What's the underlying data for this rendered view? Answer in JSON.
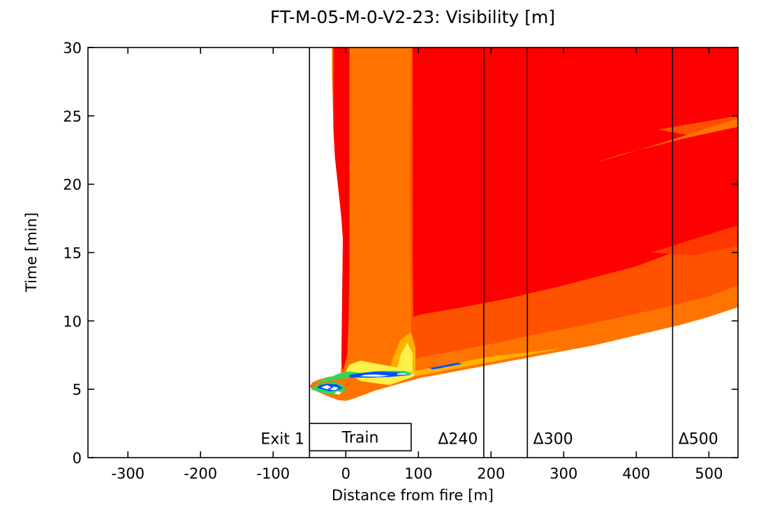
{
  "chart_data": {
    "type": "heatmap",
    "title": "FT-M-05-M-0-V2-23: Visibility [m]",
    "xlabel": "Distance from fire [m]",
    "ylabel": "Time [min]",
    "xlim": [
      -355,
      540
    ],
    "ylim": [
      0,
      30
    ],
    "xticks": [
      -300,
      -200,
      -100,
      0,
      100,
      200,
      300,
      400,
      500
    ],
    "yticks": [
      0,
      5,
      10,
      15,
      20,
      25,
      30
    ],
    "grid": false,
    "legend": "none",
    "colors": {
      "red": "#ff0000",
      "red_orange": "#ff3800",
      "orange_red": "#ff5200",
      "orange": "#ff7400",
      "light_orange": "#ff8c1a",
      "yellow_orange": "#ffb000",
      "yellow": "#fff04a",
      "green": "#2fd85a",
      "blue": "#0050ff",
      "white": "#ffffff"
    },
    "regions": [
      {
        "fill": "#ff7400",
        "points": [
          [
            -50,
            5.2
          ],
          [
            -46,
            5.5
          ],
          [
            -38,
            5.7
          ],
          [
            -25,
            5.9
          ],
          [
            -12,
            6.0
          ],
          [
            -7,
            6.1
          ],
          [
            -6,
            7.0
          ],
          [
            -5,
            12
          ],
          [
            -4,
            16
          ],
          [
            -6,
            17.5
          ],
          [
            -8,
            18.5
          ],
          [
            -12,
            20.5
          ],
          [
            -15,
            22
          ],
          [
            -17,
            24
          ],
          [
            -19,
            28
          ],
          [
            -19,
            30
          ],
          [
            540,
            30
          ],
          [
            540,
            11.0
          ],
          [
            500,
            10.3
          ],
          [
            460,
            9.7
          ],
          [
            420,
            9.2
          ],
          [
            380,
            8.7
          ],
          [
            340,
            8.2
          ],
          [
            300,
            7.8
          ],
          [
            260,
            7.4
          ],
          [
            220,
            7.0
          ],
          [
            180,
            6.6
          ],
          [
            140,
            6.2
          ],
          [
            100,
            5.8
          ],
          [
            80,
            5.5
          ],
          [
            60,
            5.2
          ],
          [
            40,
            4.9
          ],
          [
            20,
            4.5
          ],
          [
            10,
            4.3
          ],
          [
            0,
            4.15
          ],
          [
            -10,
            4.2
          ],
          [
            -25,
            4.5
          ],
          [
            -38,
            4.8
          ],
          [
            -46,
            5.0
          ]
        ]
      },
      {
        "fill": "#ff5200",
        "points": [
          [
            90,
            30
          ],
          [
            540,
            30
          ],
          [
            540,
            12.6
          ],
          [
            500,
            11.8
          ],
          [
            440,
            11.0
          ],
          [
            380,
            10.3
          ],
          [
            320,
            9.6
          ],
          [
            260,
            9.0
          ],
          [
            200,
            8.3
          ],
          [
            150,
            7.8
          ],
          [
            110,
            7.4
          ],
          [
            92,
            7.2
          ],
          [
            90,
            9
          ],
          [
            88,
            20
          ]
        ]
      },
      {
        "fill": "#ff0000",
        "points": [
          [
            -17,
            30
          ],
          [
            5,
            30
          ],
          [
            5,
            14
          ],
          [
            4,
            10
          ],
          [
            2,
            7.5
          ],
          [
            -4,
            6.3
          ],
          [
            -6,
            7.0
          ],
          [
            -5,
            12
          ],
          [
            -4,
            16
          ],
          [
            -6,
            17.5
          ],
          [
            -8,
            18.5
          ],
          [
            -12,
            20.5
          ],
          [
            -15,
            22
          ],
          [
            -17,
            24
          ]
        ]
      },
      {
        "fill": "#ff0000",
        "points": [
          [
            92,
            30
          ],
          [
            540,
            30
          ],
          [
            540,
            17.0
          ],
          [
            500,
            16.0
          ],
          [
            450,
            15.0
          ],
          [
            400,
            14.0
          ],
          [
            350,
            13.3
          ],
          [
            300,
            12.6
          ],
          [
            260,
            12.1
          ],
          [
            220,
            11.6
          ],
          [
            180,
            11.2
          ],
          [
            140,
            10.8
          ],
          [
            105,
            10.5
          ],
          [
            93,
            10.3
          ],
          [
            92,
            15
          ]
        ]
      },
      {
        "fill": "#ff3800",
        "points": [
          [
            420,
            15.0
          ],
          [
            540,
            17.0
          ],
          [
            540,
            15.5
          ],
          [
            480,
            14.8
          ]
        ]
      },
      {
        "fill": "#ff5200",
        "points": [
          [
            430,
            24.0
          ],
          [
            540,
            25.0
          ],
          [
            540,
            24.2
          ],
          [
            470,
            23.6
          ]
        ]
      },
      {
        "fill": "#ff7400",
        "points": [
          [
            340,
            21.5
          ],
          [
            440,
            23.1
          ],
          [
            540,
            24.8
          ],
          [
            540,
            24.2
          ],
          [
            470,
            23.4
          ],
          [
            380,
            22.2
          ]
        ]
      },
      {
        "fill": "#ffb000",
        "points": [
          [
            40,
            5.5
          ],
          [
            100,
            6.0
          ],
          [
            200,
            7.0
          ],
          [
            300,
            8.0
          ],
          [
            200,
            7.4
          ],
          [
            120,
            6.6
          ],
          [
            80,
            6.2
          ],
          [
            50,
            5.8
          ]
        ]
      },
      {
        "fill": "#ffb000",
        "points": [
          [
            60,
            6.3
          ],
          [
            96,
            6.2
          ],
          [
            96,
            8.0
          ],
          [
            90,
            9.2
          ],
          [
            75,
            8.6
          ],
          [
            65,
            7.3
          ]
        ]
      },
      {
        "fill": "#fff04a",
        "points": [
          [
            70,
            6.4
          ],
          [
            92,
            6.3
          ],
          [
            92,
            7.6
          ],
          [
            85,
            8.4
          ],
          [
            76,
            7.6
          ]
        ]
      },
      {
        "fill": "#fff04a",
        "points": [
          [
            20,
            5.6
          ],
          [
            60,
            5.3
          ],
          [
            92,
            5.9
          ],
          [
            96,
            6.2
          ],
          [
            70,
            6.6
          ],
          [
            40,
            6.9
          ],
          [
            20,
            7.1
          ],
          [
            5,
            6.8
          ],
          [
            0,
            6.3
          ]
        ]
      },
      {
        "fill": "#2fd85a",
        "points": [
          [
            -48,
            5.2
          ],
          [
            -40,
            5.4
          ],
          [
            -25,
            5.6
          ],
          [
            -10,
            5.75
          ],
          [
            10,
            5.85
          ],
          [
            40,
            5.85
          ],
          [
            70,
            6.0
          ],
          [
            95,
            6.15
          ],
          [
            80,
            6.35
          ],
          [
            50,
            6.35
          ],
          [
            20,
            6.2
          ],
          [
            5,
            6.3
          ],
          [
            -10,
            6.15
          ],
          [
            -20,
            5.9
          ],
          [
            -30,
            5.8
          ],
          [
            -38,
            5.5
          ]
        ]
      },
      {
        "fill": "#2fd85a",
        "points": [
          [
            -48,
            5.0
          ],
          [
            -30,
            4.7
          ],
          [
            -15,
            4.6
          ],
          [
            -5,
            4.75
          ],
          [
            0,
            5.0
          ],
          [
            -5,
            5.3
          ],
          [
            -15,
            5.55
          ],
          [
            -30,
            5.45
          ],
          [
            -44,
            5.2
          ]
        ]
      },
      {
        "fill": "#0050ff",
        "points": [
          [
            -40,
            5.1
          ],
          [
            -22,
            4.85
          ],
          [
            -10,
            4.95
          ],
          [
            -4,
            5.1
          ],
          [
            -12,
            5.35
          ],
          [
            -25,
            5.4
          ],
          [
            -36,
            5.3
          ]
        ]
      },
      {
        "fill": "#0050ff",
        "points": [
          [
            5,
            5.85
          ],
          [
            30,
            5.85
          ],
          [
            60,
            5.9
          ],
          [
            90,
            6.05
          ],
          [
            70,
            6.25
          ],
          [
            40,
            6.3
          ],
          [
            15,
            6.15
          ],
          [
            5,
            6.05
          ]
        ]
      },
      {
        "fill": "#0050ff",
        "points": [
          [
            120,
            6.45
          ],
          [
            160,
            6.85
          ],
          [
            155,
            6.95
          ],
          [
            115,
            6.55
          ]
        ]
      },
      {
        "fill": "#ffffff",
        "points": [
          [
            -34,
            5.15
          ],
          [
            -26,
            5.0
          ],
          [
            -20,
            5.15
          ],
          [
            -26,
            5.3
          ]
        ]
      },
      {
        "fill": "#ffffff",
        "points": [
          [
            -22,
            4.95
          ],
          [
            -14,
            4.95
          ],
          [
            -10,
            5.1
          ],
          [
            -16,
            5.2
          ]
        ]
      },
      {
        "fill": "#ffffff",
        "points": [
          [
            -16,
            4.7
          ],
          [
            -9,
            4.6
          ],
          [
            -6,
            4.8
          ],
          [
            -12,
            4.85
          ]
        ]
      },
      {
        "fill": "#ffffff",
        "points": [
          [
            20,
            5.95
          ],
          [
            45,
            5.92
          ],
          [
            60,
            6.0
          ],
          [
            40,
            6.08
          ],
          [
            25,
            6.05
          ]
        ]
      },
      {
        "fill": "#ffffff",
        "points": [
          [
            72,
            6.05
          ],
          [
            86,
            6.08
          ],
          [
            80,
            6.18
          ],
          [
            70,
            6.14
          ]
        ]
      }
    ],
    "vertical_lines": [
      -50,
      190,
      250,
      450
    ],
    "train_box": {
      "x": [
        -50,
        90
      ],
      "y": [
        0.5,
        2.5
      ],
      "label": "Train"
    },
    "annotations": [
      {
        "text": "Exit 1",
        "x": -57,
        "y": 1.4,
        "anchor": "end"
      },
      {
        "text": "Δ240",
        "x": 127,
        "y": 1.4,
        "anchor": "start"
      },
      {
        "text": "Δ300",
        "x": 258,
        "y": 1.4,
        "anchor": "start"
      },
      {
        "text": "Δ500",
        "x": 458,
        "y": 1.4,
        "anchor": "start"
      }
    ]
  }
}
